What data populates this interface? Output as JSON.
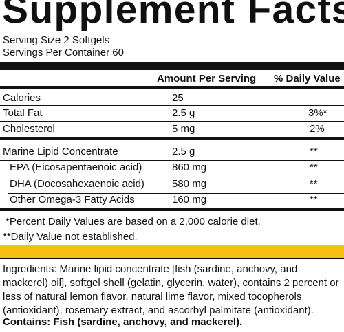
{
  "title": "Supplement Facts",
  "serving": {
    "size": "Serving Size 2 Softgels",
    "per_container": "Servings Per Container 60"
  },
  "table": {
    "header_amount": "Amount Per Serving",
    "header_dv": "% Daily Value",
    "rows": [
      {
        "name": "Calories",
        "amount": "25",
        "dv": ""
      },
      {
        "name": "Total Fat",
        "amount": "2.5 g",
        "dv": "3%*"
      },
      {
        "name": "Cholesterol",
        "amount": "5 mg",
        "dv": "2%"
      },
      {
        "name": "Marine Lipid Concentrate",
        "amount": "2.5 g",
        "dv": "**"
      },
      {
        "name": "EPA (Eicosapentaenoic acid)",
        "amount": "860 mg",
        "dv": "**"
      },
      {
        "name": "DHA (Docosahexaenoic acid)",
        "amount": "580 mg",
        "dv": "**"
      },
      {
        "name": "Other Omega-3 Fatty Acids",
        "amount": "160 mg",
        "dv": "**"
      }
    ]
  },
  "footnotes": {
    "percent": "*Percent Daily Values are based on a 2,000 calorie diet.",
    "not_established": "**Daily Value not established."
  },
  "colors": {
    "band": "#f6bf12",
    "text": "#111111"
  },
  "ingredients": {
    "text": "Ingredients: Marine lipid concentrate [fish (sardine, anchovy, and mackerel) oil], softgel shell (gelatin, glycerin, water), contains 2 percent or less of natural lemon flavor, natural lime flavor, mixed tocopherols (antioxidant), rosemary extract, and ascorbyl palmitate (antioxidant).",
    "contains": "Contains: Fish (sardine, anchovy, and mackerel)."
  }
}
